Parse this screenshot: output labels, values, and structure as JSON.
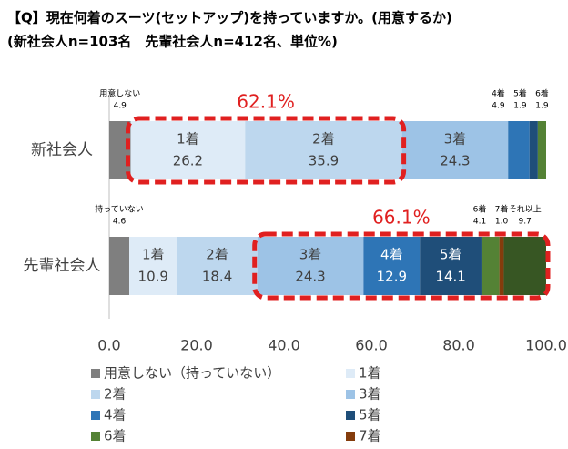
{
  "chart_data": {
    "type": "stacked_barh",
    "title": "【Q】現在何着のスーツ(セットアップ)を持っていますか。(用意するか)",
    "subtitle": "(新社会人n=103名　先輩社会人n=412名、単位%)",
    "categories": [
      "新社会人",
      "先輩社会人"
    ],
    "series": [
      {
        "name": "用意しない（持っていない）",
        "label_names": [
          "用意しない",
          "持っていない"
        ],
        "color": "#7f7f7f",
        "values": [
          4.9,
          4.6
        ],
        "value_labels": [
          "4.9",
          "4.6"
        ]
      },
      {
        "name": "1着",
        "color": "#deebf7",
        "values": [
          26.2,
          10.9
        ],
        "value_labels": [
          "26.2",
          "10.9"
        ]
      },
      {
        "name": "2着",
        "color": "#bdd7ee",
        "values": [
          35.9,
          18.4
        ],
        "value_labels": [
          "35.9",
          "18.4"
        ]
      },
      {
        "name": "3着",
        "color": "#9dc3e6",
        "values": [
          24.3,
          24.3
        ],
        "value_labels": [
          "24.3",
          "24.3"
        ]
      },
      {
        "name": "4着",
        "color": "#2e75b6",
        "values": [
          4.9,
          12.9
        ],
        "value_labels": [
          "4.9",
          "12.9"
        ]
      },
      {
        "name": "5着",
        "color": "#1f4e79",
        "values": [
          1.9,
          14.1
        ],
        "value_labels": [
          "1.9",
          "14.1"
        ]
      },
      {
        "name": "6着",
        "color": "#548235",
        "values": [
          1.9,
          4.1
        ],
        "value_labels": [
          "1.9",
          "4.1"
        ]
      },
      {
        "name": "7着",
        "color": "#843c0c",
        "values": [
          null,
          1.0
        ],
        "value_labels": [
          null,
          "1.0"
        ]
      },
      {
        "name": "それ以上",
        "color": "#375623",
        "values": [
          null,
          9.7
        ],
        "value_labels": [
          null,
          "9.7"
        ],
        "in_legend": false
      }
    ],
    "annotations": [
      {
        "text": "62.1%",
        "category": 0,
        "from_series": 1,
        "to_series": 2,
        "color": "#e02020"
      },
      {
        "text": "66.1%",
        "category": 1,
        "from_series": 3,
        "to_series": 8,
        "color": "#e02020"
      }
    ],
    "xlim": [
      0,
      100
    ],
    "xticks": [
      {
        "value": 0,
        "label": "0.0"
      },
      {
        "value": 20,
        "label": "20.0"
      },
      {
        "value": 40,
        "label": "40.0"
      },
      {
        "value": 60,
        "label": "60.0"
      },
      {
        "value": 80,
        "label": "80.0"
      },
      {
        "value": 100,
        "label": "100.0"
      }
    ],
    "grid": false
  }
}
